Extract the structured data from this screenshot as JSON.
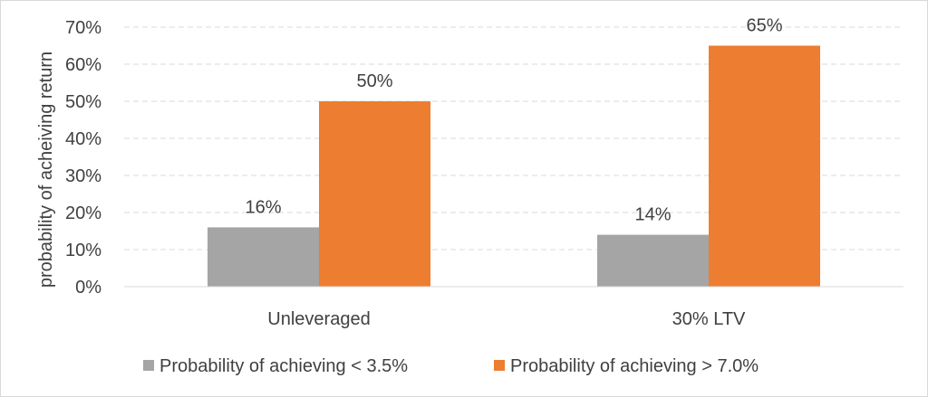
{
  "chart_data": {
    "type": "bar",
    "categories": [
      "Unleveraged",
      "30% LTV"
    ],
    "series": [
      {
        "name": "Probability of achieving < 3.5%",
        "values": [
          16,
          14
        ],
        "labels": [
          "16%",
          "14%"
        ],
        "color": "#a5a5a5"
      },
      {
        "name": "Probability of achieving > 7.0%",
        "values": [
          50,
          65
        ],
        "labels": [
          "50%",
          "65%"
        ],
        "color": "#ed7d31"
      }
    ],
    "title": "",
    "xlabel": "",
    "ylabel": "probability of acheiving return",
    "ylim": [
      0,
      70
    ],
    "yticks": [
      0,
      10,
      20,
      30,
      40,
      50,
      60,
      70
    ],
    "ytick_labels": [
      "0%",
      "10%",
      "20%",
      "30%",
      "40%",
      "50%",
      "60%",
      "70%"
    ],
    "grid": true,
    "legend_position": "bottom",
    "gridline_color": "#d9d9d9"
  }
}
